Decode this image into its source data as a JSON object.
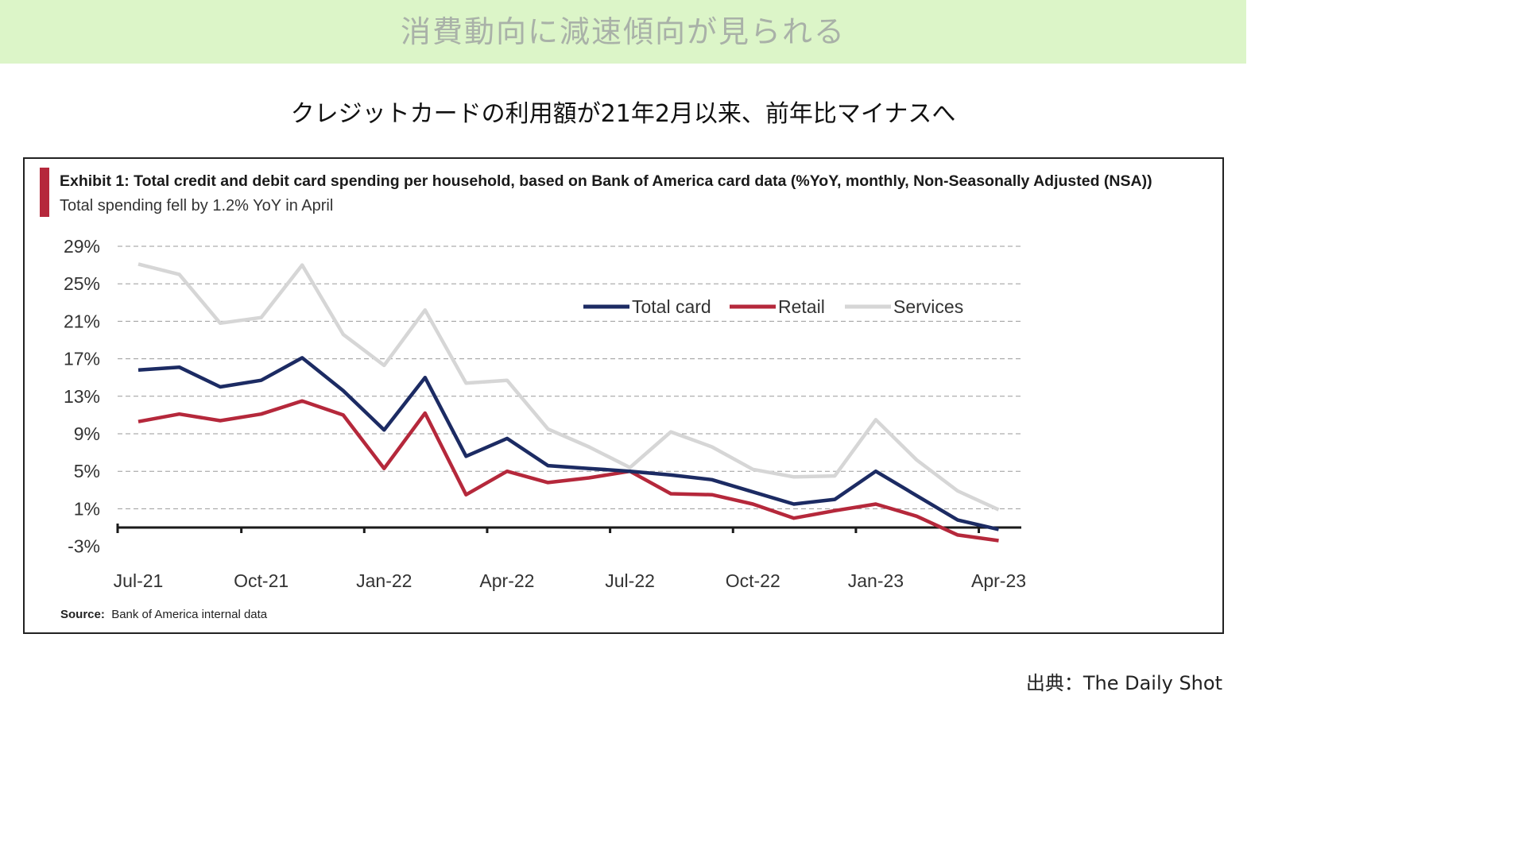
{
  "banner": {
    "title": "消費動向に減速傾向が見られる"
  },
  "subtitle": "クレジットカードの利用額が21年2月以来、前年比マイナスへ",
  "exhibit": {
    "title": "Exhibit 1: Total credit and debit card spending per household, based on Bank of America card data (%YoY, monthly, Non-Seasonally Adjusted (NSA))",
    "subtitle": "Total spending fell by 1.2% YoY in April"
  },
  "source": {
    "label": "Source:",
    "text": "Bank of America internal data"
  },
  "credit": "出典：The Daily Shot",
  "colors": {
    "total": "#1c2b63",
    "retail": "#b5283b",
    "services": "#d6d6d6",
    "banner": "#dcf5c8",
    "accent": "#b5283b"
  },
  "chart_data": {
    "type": "line",
    "x": [
      "Jul-21",
      "Aug-21",
      "Sep-21",
      "Oct-21",
      "Nov-21",
      "Dec-21",
      "Jan-22",
      "Feb-22",
      "Mar-22",
      "Apr-22",
      "May-22",
      "Jun-22",
      "Jul-22",
      "Aug-22",
      "Sep-22",
      "Oct-22",
      "Nov-22",
      "Dec-22",
      "Jan-23",
      "Feb-23",
      "Mar-23",
      "Apr-23"
    ],
    "x_tick_labels": [
      "Jul-21",
      "Oct-21",
      "Jan-22",
      "Apr-22",
      "Jul-22",
      "Oct-22",
      "Jan-23",
      "Apr-23"
    ],
    "y_tick_labels": [
      "29%",
      "25%",
      "21%",
      "17%",
      "13%",
      "9%",
      "5%",
      "1%",
      "-3%"
    ],
    "y_ticks": [
      29,
      25,
      21,
      17,
      13,
      9,
      5,
      1,
      -3
    ],
    "ylim": [
      -3,
      29
    ],
    "grid": true,
    "legend_position": "top-right",
    "series": [
      {
        "name": "Total card",
        "color": "#1c2b63",
        "values": [
          15.8,
          16.1,
          14.0,
          14.7,
          17.1,
          13.6,
          9.4,
          15.0,
          6.6,
          8.5,
          5.6,
          5.3,
          5.0,
          4.6,
          4.1,
          2.8,
          1.5,
          2.0,
          5.0,
          2.4,
          -0.2,
          -1.2
        ]
      },
      {
        "name": "Retail",
        "color": "#b5283b",
        "values": [
          10.3,
          11.1,
          10.4,
          11.1,
          12.5,
          11.0,
          5.3,
          11.2,
          2.5,
          5.0,
          3.8,
          4.3,
          5.0,
          2.6,
          2.5,
          1.5,
          0,
          0.8,
          1.5,
          0.2,
          -1.8,
          -2.4
        ]
      },
      {
        "name": "Services",
        "color": "#d6d6d6",
        "values": [
          27.1,
          26.0,
          20.8,
          21.4,
          27.0,
          19.6,
          16.3,
          22.2,
          14.4,
          14.7,
          9.5,
          7.6,
          5.4,
          9.2,
          7.6,
          5.2,
          4.4,
          4.5,
          10.5,
          6.2,
          2.9,
          0.9
        ]
      }
    ]
  }
}
